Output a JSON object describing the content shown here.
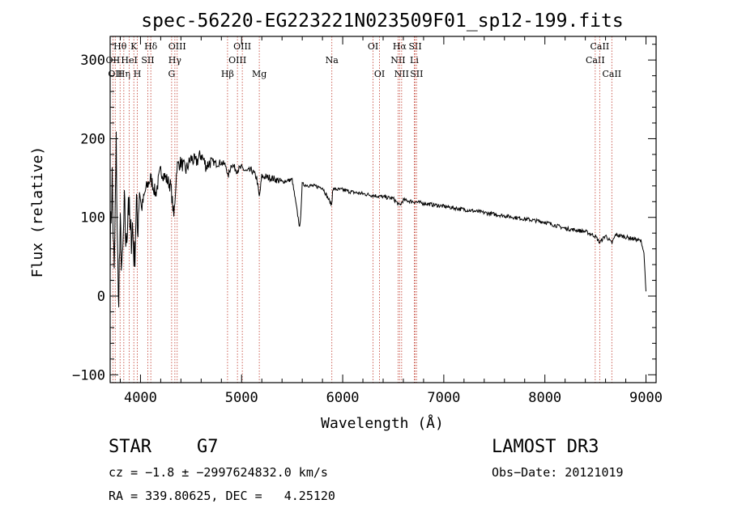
{
  "chart_data": {
    "type": "line",
    "title": "spec-56220-EG223221N023509F01_sp12-199.fits",
    "xlabel": "Wavelength (Å)",
    "ylabel": "Flux (relative)",
    "xlim": [
      3700,
      9100
    ],
    "ylim": [
      -110,
      330
    ],
    "xticks": [
      4000,
      5000,
      6000,
      7000,
      8000,
      9000
    ],
    "yticks": [
      -100,
      0,
      100,
      200,
      300
    ],
    "xtick_labels": [
      "4000",
      "5000",
      "6000",
      "7000",
      "8000",
      "9000"
    ],
    "ytick_labels": [
      "−100",
      "0",
      "100",
      "200",
      "300"
    ],
    "spectrum": {
      "x": [
        3700,
        3720,
        3740,
        3760,
        3780,
        3800,
        3820,
        3840,
        3860,
        3880,
        3900,
        3920,
        3940,
        3960,
        3970,
        3990,
        4010,
        4050,
        4100,
        4150,
        4200,
        4250,
        4300,
        4330,
        4360,
        4400,
        4450,
        4500,
        4550,
        4600,
        4650,
        4700,
        4750,
        4800,
        4850,
        4862,
        4900,
        4950,
        5000,
        5050,
        5100,
        5150,
        5175,
        5200,
        5300,
        5400,
        5500,
        5577,
        5600,
        5700,
        5800,
        5893,
        5900,
        6000,
        6100,
        6200,
        6300,
        6400,
        6500,
        6563,
        6600,
        6700,
        6800,
        6900,
        7000,
        7100,
        7200,
        7300,
        7400,
        7500,
        7600,
        7700,
        7800,
        7900,
        8000,
        8100,
        8200,
        8300,
        8400,
        8500,
        8542,
        8600,
        8662,
        8700,
        8800,
        8900,
        8950,
        8980,
        9000
      ],
      "flux": [
        60,
        150,
        20,
        190,
        -10,
        80,
        30,
        110,
        60,
        130,
        70,
        90,
        45,
        120,
        80,
        140,
        110,
        135,
        150,
        130,
        160,
        150,
        140,
        100,
        165,
        170,
        160,
        175,
        170,
        180,
        165,
        172,
        168,
        170,
        165,
        150,
        168,
        160,
        163,
        158,
        160,
        150,
        125,
        152,
        150,
        145,
        148,
        85,
        142,
        140,
        138,
        115,
        136,
        135,
        132,
        130,
        128,
        126,
        124,
        115,
        122,
        120,
        118,
        116,
        114,
        112,
        110,
        108,
        106,
        104,
        102,
        100,
        98,
        96,
        94,
        90,
        86,
        84,
        82,
        76,
        68,
        77,
        67,
        78,
        75,
        72,
        70,
        55,
        5
      ]
    },
    "line_markers": [
      {
        "wavelength": 3727,
        "label": "OII",
        "row": 1
      },
      {
        "wavelength": 3750,
        "label": "OII",
        "row": 2
      },
      {
        "wavelength": 3798,
        "label": "Hθ",
        "row": 0
      },
      {
        "wavelength": 3835,
        "label": "Hη",
        "row": 2
      },
      {
        "wavelength": 3889,
        "label": "HeI",
        "row": 1
      },
      {
        "wavelength": 3934,
        "label": "K",
        "row": 0
      },
      {
        "wavelength": 3969,
        "label": "H",
        "row": 2
      },
      {
        "wavelength": 4072,
        "label": "SII",
        "row": 1
      },
      {
        "wavelength": 4102,
        "label": "Hδ",
        "row": 0
      },
      {
        "wavelength": 4308,
        "label": "G",
        "row": 2
      },
      {
        "wavelength": 4340,
        "label": "Hγ",
        "row": 1
      },
      {
        "wavelength": 4363,
        "label": "OIII",
        "row": 0
      },
      {
        "wavelength": 4861,
        "label": "Hβ",
        "row": 2
      },
      {
        "wavelength": 4959,
        "label": "OIII",
        "row": 1
      },
      {
        "wavelength": 5007,
        "label": "OIII",
        "row": 0
      },
      {
        "wavelength": 5175,
        "label": "Mg",
        "row": 2
      },
      {
        "wavelength": 5893,
        "label": "Na",
        "row": 1
      },
      {
        "wavelength": 6300,
        "label": "OI",
        "row": 0
      },
      {
        "wavelength": 6364,
        "label": "OI",
        "row": 2
      },
      {
        "wavelength": 6548,
        "label": "NII",
        "row": 1
      },
      {
        "wavelength": 6563,
        "label": "Hα",
        "row": 0
      },
      {
        "wavelength": 6583,
        "label": "NII",
        "row": 2
      },
      {
        "wavelength": 6708,
        "label": "Li",
        "row": 1
      },
      {
        "wavelength": 6717,
        "label": "SII",
        "row": 0
      },
      {
        "wavelength": 6731,
        "label": "SII",
        "row": 2
      },
      {
        "wavelength": 8498,
        "label": "CaII",
        "row": 1
      },
      {
        "wavelength": 8542,
        "label": "CaII",
        "row": 0
      },
      {
        "wavelength": 8662,
        "label": "CaII",
        "row": 2
      }
    ],
    "colors": {
      "spectrum": "#000000",
      "markers": "#c0392b"
    }
  },
  "info": {
    "object_class": "STAR",
    "subclass": "G7",
    "survey": "LAMOST DR3",
    "redshift_line": "cz = −1.8 ± −2997624832.0 km/s",
    "obs_date_line": "Obs−Date: 20121019",
    "coords_line": "RA = 339.80625, DEC =   4.25120"
  }
}
